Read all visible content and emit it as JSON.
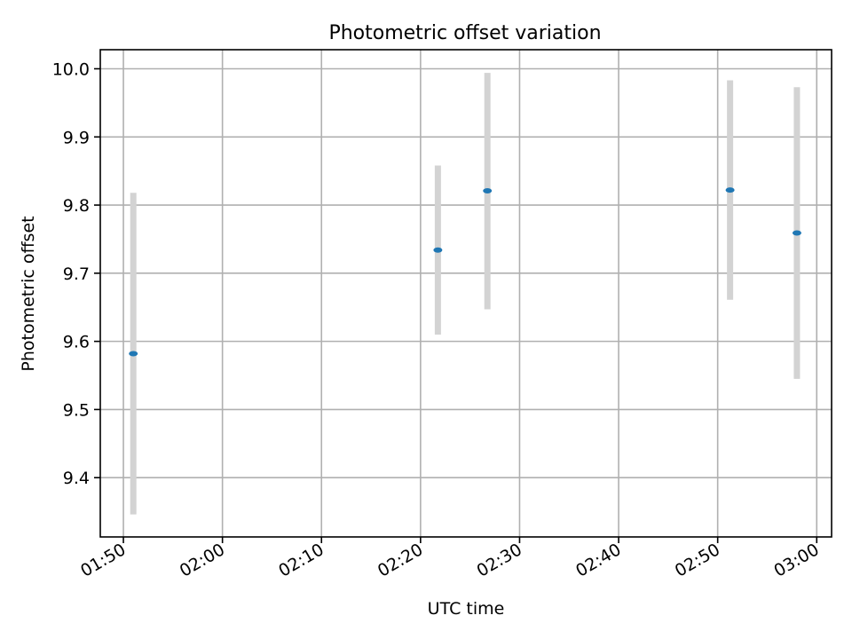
{
  "chart_data": {
    "type": "scatter",
    "title": "Photometric offset variation",
    "xlabel": "UTC time",
    "ylabel": "Photometric offset",
    "xlim": [
      "01:47:40",
      "03:01:30"
    ],
    "ylim": [
      9.313,
      10.028
    ],
    "x_ticks": [
      "01:50",
      "02:00",
      "02:10",
      "02:20",
      "02:30",
      "02:40",
      "02:50",
      "03:00"
    ],
    "y_ticks": [
      "9.4",
      "9.5",
      "9.6",
      "9.7",
      "9.8",
      "9.9",
      "10.0"
    ],
    "grid": true,
    "marker_color": "#1f77b4",
    "errorbar_color": "#d3d3d3",
    "points": [
      {
        "x": "01:51:00",
        "y": 9.582,
        "ylow": 9.346,
        "yhigh": 9.818
      },
      {
        "x": "02:21:45",
        "y": 9.734,
        "ylow": 9.61,
        "yhigh": 9.858
      },
      {
        "x": "02:26:45",
        "y": 9.821,
        "ylow": 9.647,
        "yhigh": 9.994
      },
      {
        "x": "02:51:15",
        "y": 9.822,
        "ylow": 9.661,
        "yhigh": 9.983
      },
      {
        "x": "02:58:00",
        "y": 9.759,
        "ylow": 9.545,
        "yhigh": 9.973
      }
    ]
  }
}
